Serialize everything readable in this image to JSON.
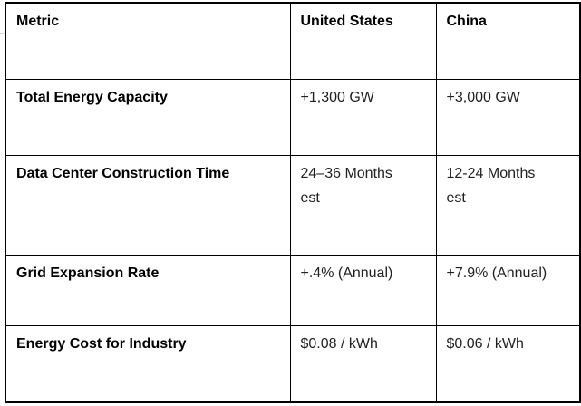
{
  "table": {
    "header": {
      "metric": "Metric",
      "us": "United States",
      "china": "China"
    },
    "rows": [
      {
        "metric": "Total Energy Capacity",
        "us": "+1,300 GW",
        "china": "+3,000 GW"
      },
      {
        "metric": "Data Center Construction Time",
        "us": "24–36 Months\nest",
        "china": "12-24 Months\nest"
      },
      {
        "metric": "Grid Expansion Rate",
        "us": "+.4% (Annual)",
        "china": "+7.9% (Annual)"
      },
      {
        "metric": "Energy Cost for Industry",
        "us": "$0.08 / kWh",
        "china": "$0.06 / kWh"
      }
    ],
    "colors": {
      "border": "#000000",
      "header_text": "#000000",
      "value_text": "#1f1f1f",
      "background": "#ffffff",
      "margin_tick": "#d8d8d8"
    }
  }
}
